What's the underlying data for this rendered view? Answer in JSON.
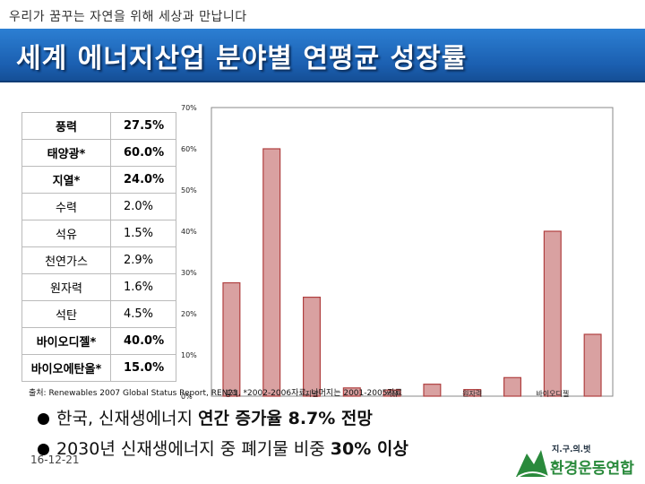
{
  "header": {
    "slogan": "우리가 꿈꾸는 자연을 위해 세상과 만납니다",
    "title": "세계 에너지산업 분야별 연평균 성장률"
  },
  "table": [
    {
      "name": "풍력",
      "value": "27.5%",
      "bold": true
    },
    {
      "name": "태양광*",
      "value": "60.0%",
      "bold": true
    },
    {
      "name": "지열*",
      "value": "24.0%",
      "bold": true
    },
    {
      "name": "수력",
      "value": "2.0%",
      "bold": false
    },
    {
      "name": "석유",
      "value": "1.5%",
      "bold": false
    },
    {
      "name": "천연가스",
      "value": "2.9%",
      "bold": false
    },
    {
      "name": "원자력",
      "value": "1.6%",
      "bold": false
    },
    {
      "name": "석탄",
      "value": "4.5%",
      "bold": false
    },
    {
      "name": "바이오디젤*",
      "value": "40.0%",
      "bold": true
    },
    {
      "name": "바이오에탄올*",
      "value": "15.0%",
      "bold": true
    }
  ],
  "chart_data": {
    "type": "bar",
    "categories": [
      "풍력",
      "태양광*",
      "지열*",
      "수력",
      "석유",
      "천연가스",
      "원자력",
      "석탄",
      "바이오디젤*",
      "바이오에탄올*"
    ],
    "values": [
      27.5,
      60.0,
      24.0,
      2.0,
      1.5,
      2.9,
      1.6,
      4.5,
      40.0,
      15.0
    ],
    "x_tick_labels": [
      "풍력",
      "지열",
      "석유",
      "원자력",
      "바이오디젤"
    ],
    "y_ticks": [
      "0%",
      "10%",
      "20%",
      "30%",
      "40%",
      "50%",
      "60%",
      "70%"
    ],
    "ylim": [
      0,
      70
    ],
    "bar_color": "#d9a1a1",
    "bar_edge": "#b04040",
    "grid": false
  },
  "footer": {
    "source": "출처: Renewables 2007 Global Status Report, REN21, *2002-2006자료, 나머지는 2001-2005자료",
    "bullet1_pre": "한국, 신재생에너지 ",
    "bullet1_hl": "연간 증가율 8.7% 전망",
    "bullet2_pre": "2030년 신재생에너지 중 폐기물 비중 ",
    "bullet2_hl": "30% 이상",
    "date": "16-12-21"
  },
  "logo": {
    "sub": "지.구.의.벗",
    "org": "환경운동연합"
  }
}
